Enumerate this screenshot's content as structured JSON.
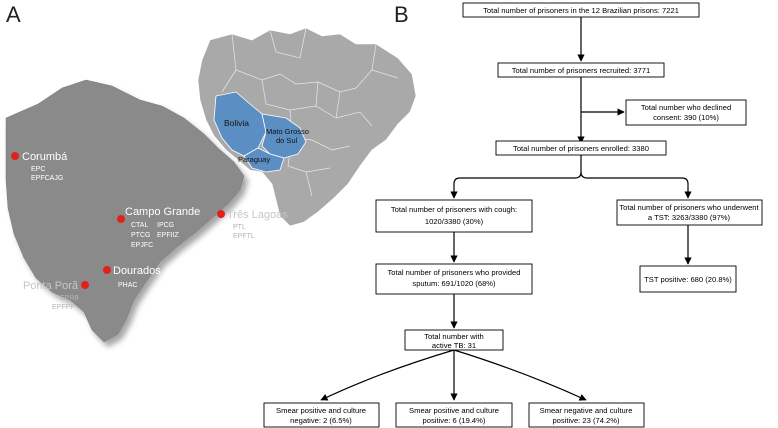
{
  "panel_a": {
    "letter": "A",
    "inset_labels": {
      "bolivia": "Bolivia",
      "mato_grosso_do_sul_line1": "Mato Grosso",
      "mato_grosso_do_sul_line2": "do Sul",
      "paraguay": "Paraguay"
    },
    "cities": [
      {
        "name": "Corumbá",
        "prisons": [
          "EPC",
          "EPFCAJG"
        ]
      },
      {
        "name": "Campo Grande",
        "prisons": [
          "CTAL",
          "IPCG",
          "PTCG",
          "EPFIIZ",
          "EPJFC"
        ]
      },
      {
        "name": "Três Lagoas",
        "prisons": [
          "PTL",
          "EPFTL"
        ]
      },
      {
        "name": "Dourados",
        "prisons": [
          "PHAC"
        ]
      },
      {
        "name": "Ponta Porã",
        "prisons": [
          "EPRB",
          "EPFPP"
        ]
      }
    ],
    "colors": {
      "state": "#8a8a8a",
      "highlight": "#5b8fc3",
      "city_dot": "#e0211c"
    }
  },
  "panel_b": {
    "letter": "B",
    "boxes": {
      "total": "Total number of prisoners in the 12 Brazilian prisons: 7221",
      "recruited": "Total number of prisoners recruited: 3771",
      "declined_line1": "Total number who declined",
      "declined_line2": "consent: 390 (10%)",
      "enrolled": "Total number of prisoners enrolled: 3380",
      "cough_line1": "Total number of prisoners with cough:",
      "cough_line2": "1020/3380 (30%)",
      "tst_line1": "Total number of prisoners who underwent",
      "tst_line2": "a TST: 3263/3380 (97%)",
      "sputum_line1": "Total number of prisoners who provided",
      "sputum_line2": "sputum: 691/1020 (68%)",
      "tst_positive": "TST positive: 680 (20.8%)",
      "active_tb_line1": "Total number with",
      "active_tb_line2": "active TB: 31",
      "smear_pos_cult_neg_line1": "Smear positive and culture",
      "smear_pos_cult_neg_line2": "negative: 2 (6.5%)",
      "smear_pos_cult_pos_line1": "Smear positive and culture",
      "smear_pos_cult_pos_line2": "positive: 6 (19.4%)",
      "smear_neg_cult_pos_line1": "Smear negative and culture",
      "smear_neg_cult_pos_line2": "positive: 23 (74.2%)"
    }
  }
}
